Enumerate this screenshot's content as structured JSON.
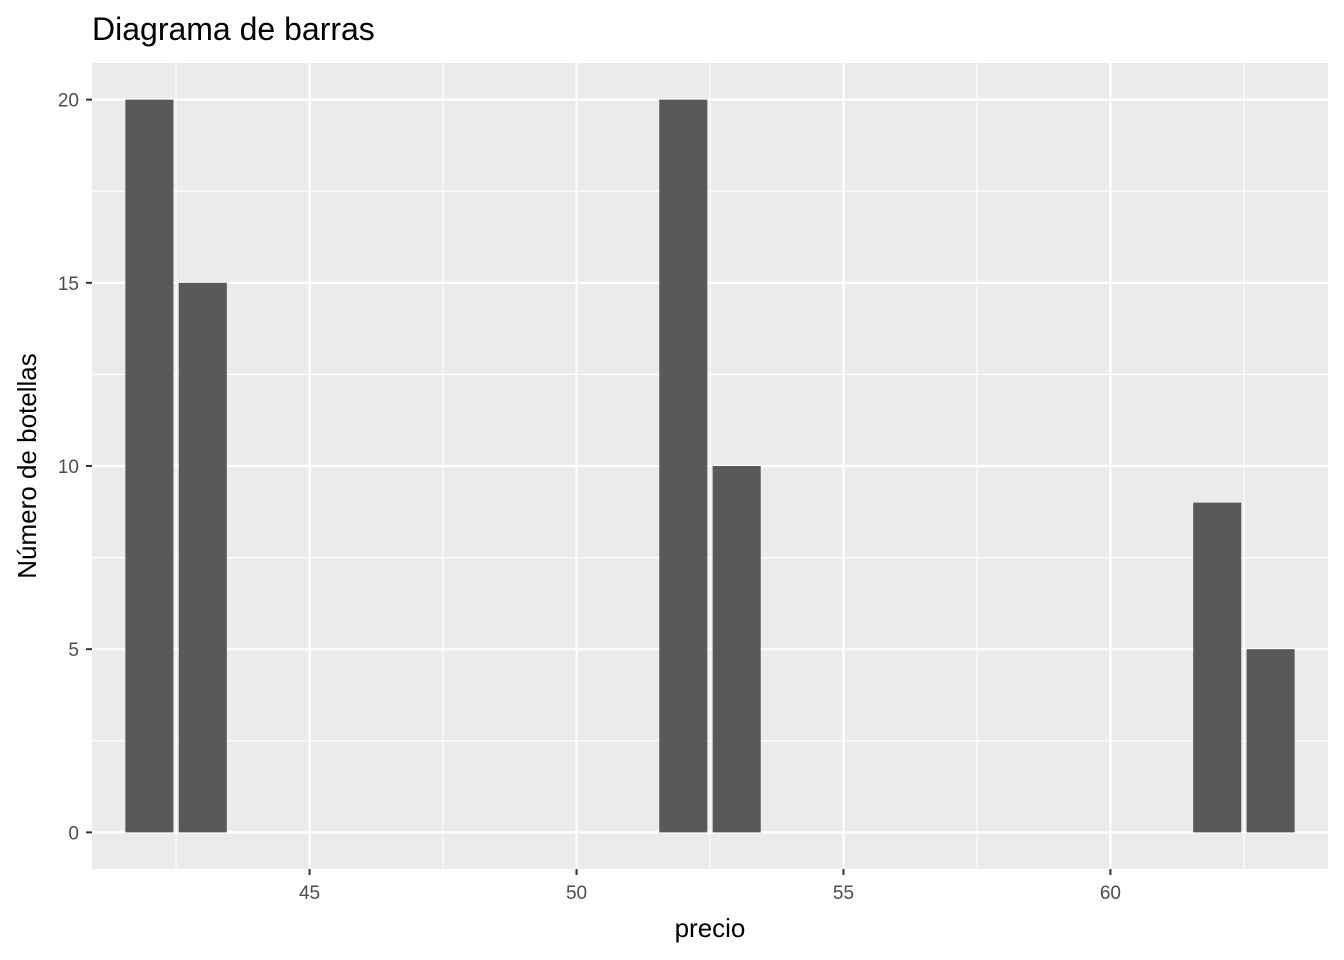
{
  "chart_data": {
    "type": "bar",
    "title": "Diagrama de barras",
    "xlabel": "precio",
    "ylabel": "Número de botellas",
    "x": [
      42,
      43,
      52,
      53,
      62,
      63
    ],
    "values": [
      20,
      15,
      20,
      10,
      9,
      5
    ],
    "bar_width": 0.9,
    "xlim": [
      40.925,
      64.075
    ],
    "ylim": [
      -1,
      21
    ],
    "x_major_ticks": [
      45,
      50,
      55,
      60
    ],
    "x_minor_ticks": [
      42.5,
      47.5,
      52.5,
      57.5,
      62.5
    ],
    "y_major_ticks": [
      0,
      5,
      10,
      15,
      20
    ],
    "y_minor_ticks": [
      2.5,
      7.5,
      12.5,
      17.5
    ],
    "grid": true,
    "legend": "none",
    "colors": {
      "bar": "#595959",
      "panel": "#ebebeb",
      "grid": "#ffffff",
      "tick_text": "#4d4d4d",
      "tick_mark": "#333333"
    }
  }
}
